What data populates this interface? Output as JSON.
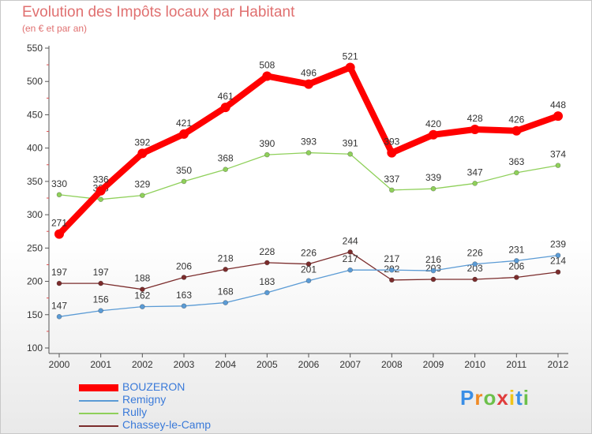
{
  "chart_data": {
    "type": "line",
    "title": "Evolution des Impôts locaux par Habitant",
    "subtitle": "(en € et par an)",
    "xlabel": "",
    "ylabel": "",
    "categories": [
      "2000",
      "2001",
      "2002",
      "2003",
      "2004",
      "2005",
      "2006",
      "2007",
      "2008",
      "2009",
      "2010",
      "2011",
      "2012"
    ],
    "ylim": [
      100,
      550
    ],
    "yticks": [
      "100",
      "150",
      "200",
      "250",
      "300",
      "350",
      "400",
      "450",
      "500",
      "550"
    ],
    "series": [
      {
        "name": "BOUZERON",
        "color": "#ff0000",
        "values": [
          271,
          336,
          392,
          421,
          461,
          508,
          496,
          521,
          393,
          420,
          428,
          426,
          448
        ]
      },
      {
        "name": "Remigny",
        "color": "#5b9bd5",
        "values": [
          147,
          156,
          162,
          163,
          168,
          183,
          201,
          217,
          217,
          216,
          226,
          231,
          239
        ]
      },
      {
        "name": "Rully",
        "color": "#8fd05a",
        "values": [
          330,
          323,
          329,
          350,
          368,
          390,
          393,
          391,
          337,
          339,
          347,
          363,
          374
        ]
      },
      {
        "name": "Chassey-le-Camp",
        "color": "#7b2c2c",
        "values": [
          197,
          197,
          188,
          206,
          218,
          228,
          226,
          244,
          202,
          203,
          203,
          206,
          214
        ]
      }
    ],
    "data_labels": {
      "BOUZERON": [
        "271",
        "336",
        "392",
        "421",
        "461",
        "508",
        "496",
        "521",
        "393",
        "420",
        "428",
        "426",
        "448"
      ],
      "Remigny": [
        "147",
        "156",
        "162",
        "163",
        "168",
        "183",
        "201",
        "217",
        "217",
        "216",
        "226",
        "231",
        "239"
      ],
      "Rully": [
        "330",
        "323",
        "329",
        "350",
        "368",
        "390",
        "393",
        "391",
        "337",
        "339",
        "347",
        "363",
        "374"
      ],
      "Chassey-le-Camp": [
        "197",
        "197",
        "188",
        "206",
        "218",
        "228",
        "226",
        "244",
        "202",
        "203",
        "203",
        "206",
        "214"
      ]
    },
    "legend_position": "bottom-left",
    "grid": false
  },
  "logo": {
    "text": "Proxiti",
    "colors": [
      "#3a8ee6",
      "#f08a24",
      "#6cc04a",
      "#e03c3c",
      "#f0c419",
      "#3a8ee6",
      "#6cc04a"
    ]
  }
}
